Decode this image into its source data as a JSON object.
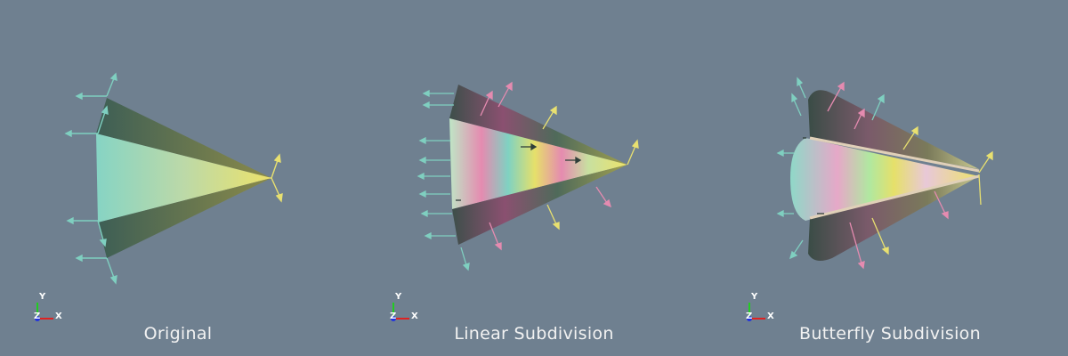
{
  "panels": [
    {
      "title": "Original",
      "type": "original"
    },
    {
      "title": "Linear Subdivision",
      "type": "linear"
    },
    {
      "title": "Butterfly Subdivision",
      "type": "butterfly"
    }
  ],
  "axes": {
    "x": "X",
    "y": "Y",
    "z": "Z"
  },
  "colors": {
    "background": "#6f8090",
    "teal": "#7fd2c2",
    "yellow": "#e6e06a",
    "pink": "#e58bb0",
    "dark": "#3f5a52"
  }
}
